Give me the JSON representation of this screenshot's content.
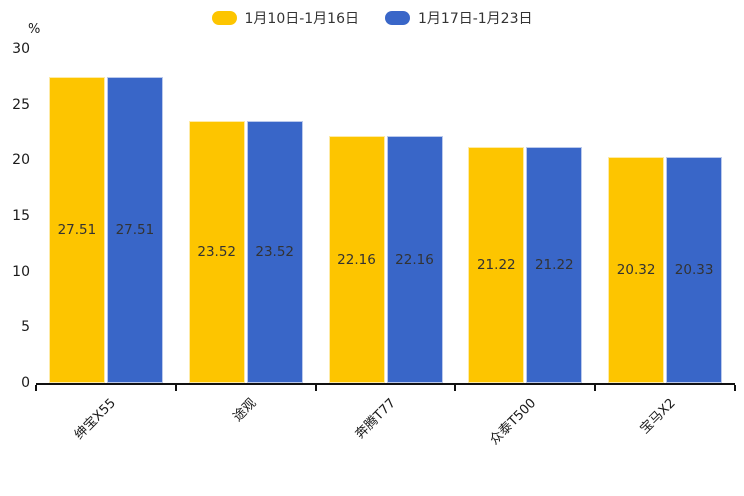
{
  "chart_data": {
    "type": "bar",
    "title": "",
    "unit_label": "%",
    "categories": [
      "绅宝X55",
      "途观",
      "奔腾T77",
      "众泰T500",
      "宝马X2"
    ],
    "series": [
      {
        "name": "1月10日-1月16日",
        "color": "#FDC500",
        "values": [
          27.51,
          23.52,
          22.16,
          21.22,
          20.32
        ]
      },
      {
        "name": "1月17日-1月23日",
        "color": "#3966C8",
        "values": [
          27.51,
          23.52,
          22.16,
          21.22,
          20.33
        ]
      }
    ],
    "value_labels": [
      [
        "27.51",
        "23.52",
        "22.16",
        "21.22",
        "20.32"
      ],
      [
        "27.51",
        "23.52",
        "22.16",
        "21.22",
        "20.33"
      ]
    ],
    "ylim": [
      0,
      30
    ],
    "yticks": [
      "0",
      "5",
      "10",
      "15",
      "20",
      "25",
      "30"
    ],
    "grid": false,
    "legend_position": "top",
    "value_label_color": "#333333",
    "axis_color": "#111111",
    "background_color": "#ffffff"
  }
}
